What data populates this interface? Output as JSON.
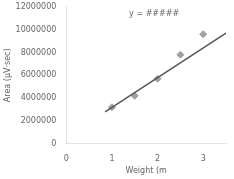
{
  "chart_data": {
    "type": "scatter",
    "annotation": "y = #####",
    "xlabel": "Weight (m",
    "ylabel": "Area (μV·sec)",
    "xlim": [
      0,
      3.5
    ],
    "ylim": [
      0,
      12000000
    ],
    "xticks": [
      0,
      1,
      2,
      3
    ],
    "yticks": [
      0,
      2000000,
      4000000,
      6000000,
      8000000,
      10000000,
      12000000
    ],
    "grid": false,
    "series": [
      {
        "type": "line",
        "color": "#555555",
        "line_style": "solid",
        "x": [
          0.85,
          3.5
        ],
        "values": [
          2800000,
          9700000
        ]
      },
      {
        "type": "scatter",
        "color": "#a0a0a0",
        "marker": "diamond",
        "x": [
          1.0,
          1.5,
          2.0,
          2.5,
          3.0
        ],
        "values": [
          3200000,
          4200000,
          5700000,
          7800000,
          9600000
        ]
      }
    ]
  }
}
